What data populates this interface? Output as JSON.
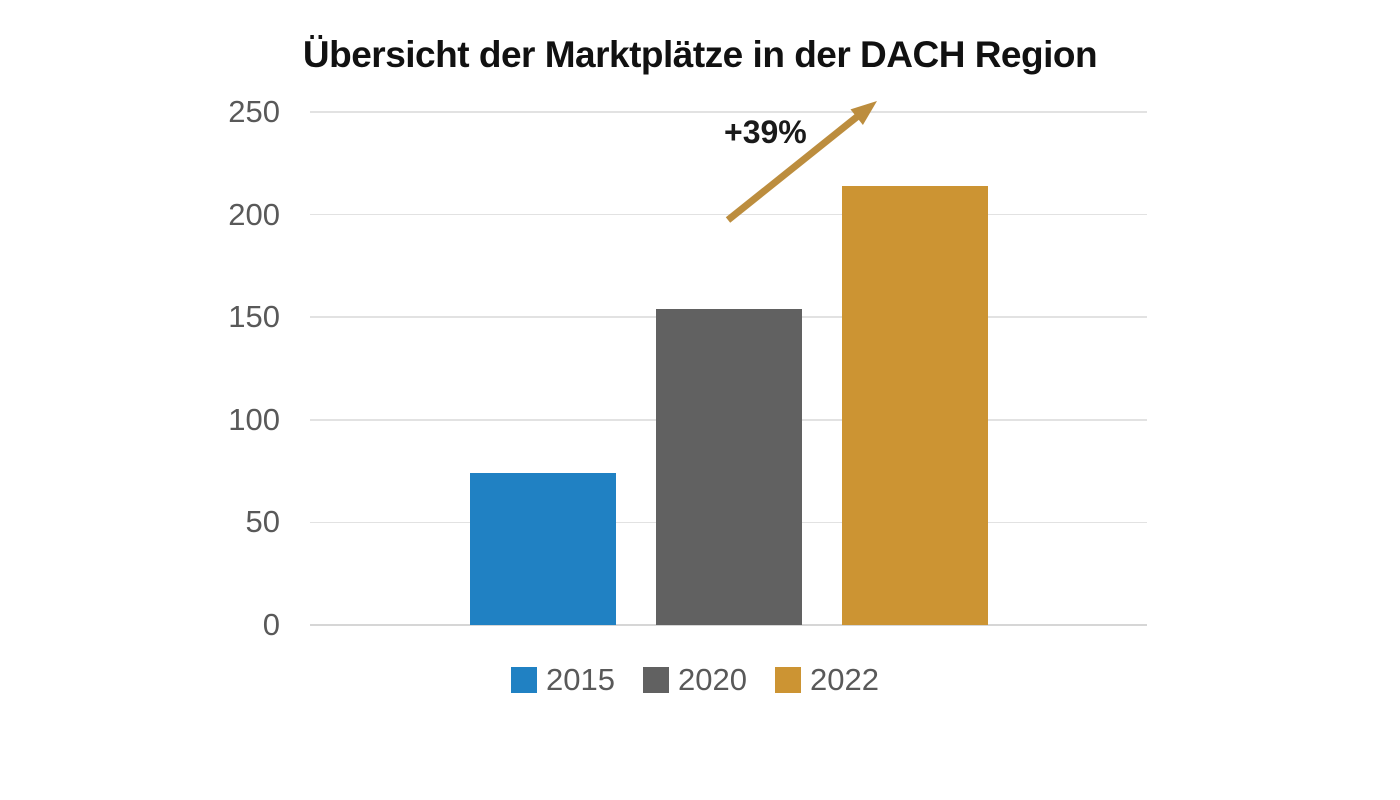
{
  "chart_data": {
    "type": "bar",
    "title": "Übersicht der Marktplätze in der DACH Region",
    "categories": [
      "2015",
      "2020",
      "2022"
    ],
    "values": [
      74,
      154,
      214
    ],
    "bar_colors": [
      "#2081C3",
      "#616161",
      "#CC9433"
    ],
    "xlabel": "",
    "ylabel": "",
    "ylim": [
      0,
      250
    ],
    "yticks": [
      "0",
      "50",
      "100",
      "150",
      "200",
      "250"
    ],
    "grid": "on",
    "legend": {
      "position": "bottom",
      "entries": [
        "2015",
        "2020",
        "2022"
      ]
    },
    "annotation": {
      "text": "+39%",
      "arrow": true
    }
  },
  "colors": {
    "background": "#FFFFFF",
    "title_text": "#111111",
    "axis_text": "#595959",
    "gridline": "#E2E2E2",
    "baseline": "#D6D6D6",
    "annotation_text": "#1A1A1A",
    "arrow": "#BC8D3E"
  }
}
